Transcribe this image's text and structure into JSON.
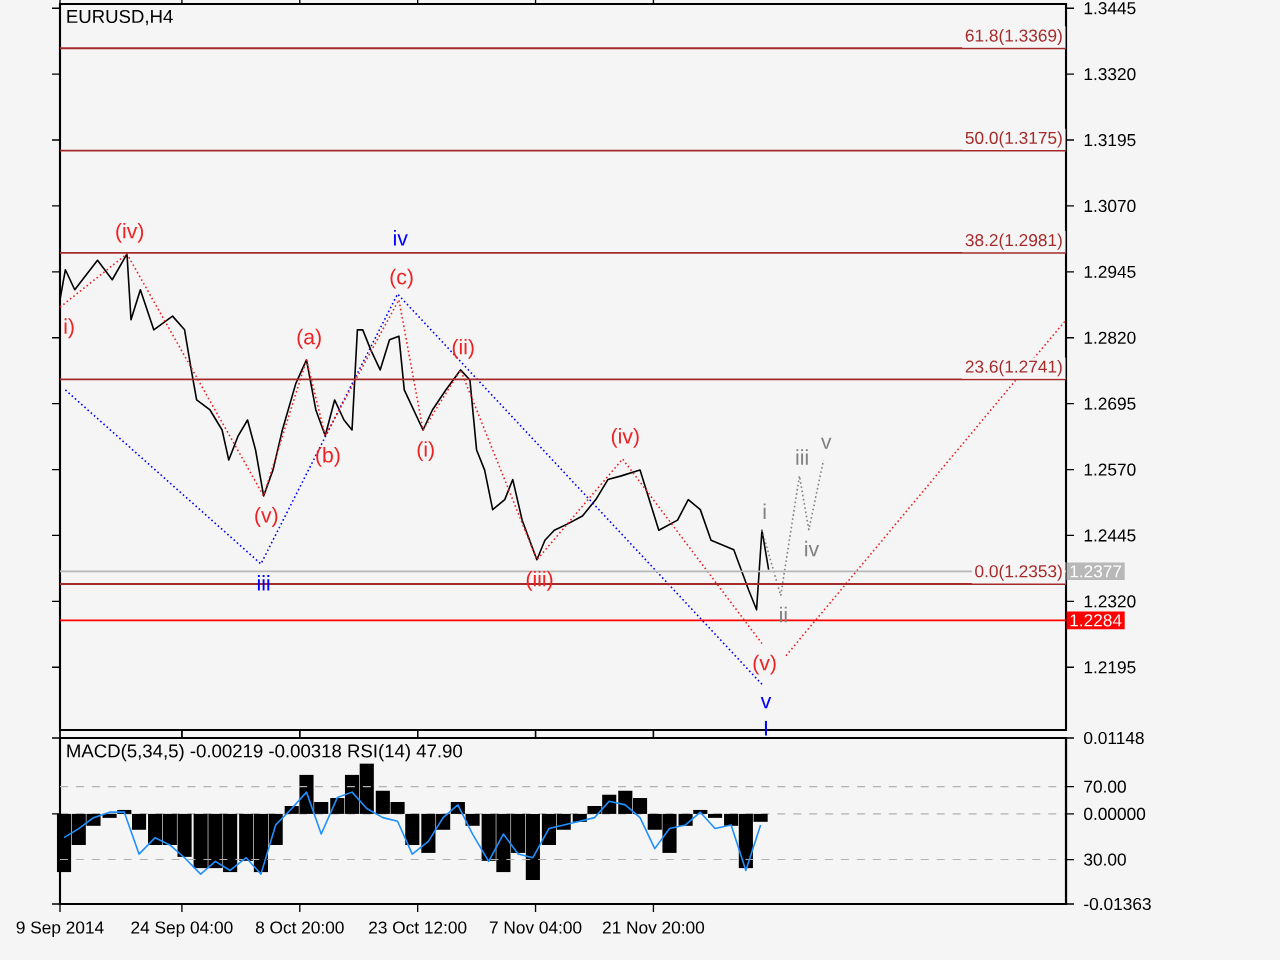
{
  "chart_data": [
    {
      "type": "line",
      "title": "EURUSD,H4",
      "tick_labels": "y",
      "xlim": [
        "2014-09-09T00:00",
        "2015-01-12T04:00"
      ],
      "ylim": [
        1.2076,
        1.3453
      ],
      "xticks": [
        {
          "value": "2014-09-09T00:00",
          "label": null
        },
        {
          "value": "2014-09-24T04:00",
          "label": null
        },
        {
          "value": "2014-10-08T20:00",
          "label": null
        },
        {
          "value": "2014-10-23T12:00",
          "label": null
        },
        {
          "value": "2014-11-07T04:00",
          "label": null
        },
        {
          "value": "2014-11-21T20:00",
          "label": null
        }
      ],
      "yticks": [
        {
          "value": 1.2195,
          "label": "1.2195"
        },
        {
          "value": 1.232,
          "label": "1.2320"
        },
        {
          "value": 1.2445,
          "label": "1.2445"
        },
        {
          "value": 1.257,
          "label": "1.2570"
        },
        {
          "value": 1.2695,
          "label": "1.2695"
        },
        {
          "value": 1.282,
          "label": "1.2820"
        },
        {
          "value": 1.2945,
          "label": "1.2945"
        },
        {
          "value": 1.307,
          "label": "1.3070"
        },
        {
          "value": 1.3195,
          "label": "1.3195"
        },
        {
          "value": 1.332,
          "label": "1.3320"
        },
        {
          "value": 1.3445,
          "label": "1.3445"
        }
      ],
      "series": [
        {
          "color": "#000000",
          "x": [
            "2014-09-09T00:00",
            "2014-09-09T16:00",
            "2014-09-10T20:00",
            "2014-09-13T16:00",
            "2014-09-15T12:00",
            "2014-09-17T08:00",
            "2014-09-17T20:00",
            "2014-09-19T00:00",
            "2014-09-20T16:00",
            "2014-09-23T00:00",
            "2014-09-24T12:00",
            "2014-09-25T08:00",
            "2014-09-26T00:00",
            "2014-09-27T16:00",
            "2014-09-29T04:00",
            "2014-09-30T00:00",
            "2014-10-01T04:00",
            "2014-10-02T08:00",
            "2014-10-03T08:00",
            "2014-10-04T08:00",
            "2014-10-05T12:00",
            "2014-10-06T16:00",
            "2014-10-08T08:00",
            "2014-10-09T16:00",
            "2014-10-10T20:00",
            "2014-10-12T00:00",
            "2014-10-13T04:00",
            "2014-10-14T08:00",
            "2014-10-15T08:00",
            "2014-10-16T00:00",
            "2014-10-16T16:00",
            "2014-10-17T16:00",
            "2014-10-18T20:00",
            "2014-10-20T00:00",
            "2014-10-21T04:00",
            "2014-10-21T20:00",
            "2014-10-23T00:00",
            "2014-10-24T04:00",
            "2014-10-25T08:00",
            "2014-10-27T00:00",
            "2014-10-28T20:00",
            "2014-10-30T00:00",
            "2014-10-30T20:00",
            "2014-10-31T20:00",
            "2014-11-01T20:00",
            "2014-11-03T08:00",
            "2014-11-04T08:00",
            "2014-11-05T12:00",
            "2014-11-07T08:00",
            "2014-11-08T08:00",
            "2014-11-09T12:00",
            "2014-11-11T04:00",
            "2014-11-13T00:00",
            "2014-11-14T16:00",
            "2014-11-16T04:00",
            "2014-11-17T20:00",
            "2014-11-20T04:00",
            "2014-11-22T12:00",
            "2014-11-24T20:00",
            "2014-11-26T04:00",
            "2014-11-27T16:00",
            "2014-11-29T00:00",
            "2014-12-01T20:00",
            "2014-12-03T16:00",
            "2014-12-04T16:00",
            "2014-12-05T08:00",
            "2014-12-06T04:00"
          ],
          "values": [
            1.2892,
            1.2949,
            1.2911,
            1.2967,
            1.293,
            1.2979,
            1.2854,
            1.2911,
            1.2835,
            1.2861,
            1.2835,
            1.2759,
            1.2702,
            1.2683,
            1.2645,
            1.2588,
            1.2634,
            1.2664,
            1.2607,
            1.252,
            1.2569,
            1.2645,
            1.2733,
            1.2778,
            1.2683,
            1.2634,
            1.2702,
            1.2664,
            1.2645,
            1.2835,
            1.2835,
            1.2797,
            1.2759,
            1.2816,
            1.2823,
            1.2721,
            1.2683,
            1.2645,
            1.2683,
            1.2721,
            1.2759,
            1.274,
            1.2607,
            1.2569,
            1.2494,
            1.2513,
            1.2551,
            1.2474,
            1.2399,
            1.2436,
            1.2455,
            1.2467,
            1.2482,
            1.2513,
            1.2551,
            1.2558,
            1.2569,
            1.2455,
            1.2474,
            1.2513,
            1.2494,
            1.2436,
            1.2418,
            1.2342,
            1.2304,
            1.2455,
            1.238
          ]
        },
        {
          "color": "#0000ff",
          "line_style": "dotted",
          "x": [
            "2014-09-09T16:00",
            "2014-10-04T00:00",
            "2014-10-21T00:00",
            "2014-12-05T12:00"
          ],
          "values": [
            1.2721,
            1.2391,
            1.2903,
            1.216
          ]
        },
        {
          "color": "#ee2222",
          "line_style": "dotted",
          "x": [
            "2014-09-09T00:00",
            "2014-09-17T08:00",
            "2014-10-04T08:00",
            "2014-10-09T16:00",
            "2014-10-12T00:00",
            "2014-10-21T04:00",
            "2014-10-24T04:00",
            "2014-10-28T20:00",
            "2014-11-07T08:00",
            "2014-11-18T00:00",
            "2014-12-05T08:00"
          ],
          "values": [
            1.2878,
            1.2979,
            1.252,
            1.2778,
            1.2634,
            1.2892,
            1.2645,
            1.2759,
            1.2399,
            1.259,
            1.224
          ]
        },
        {
          "color": "#ee2222",
          "line_style": "dotted",
          "x": [
            "2014-12-08T08:00",
            "2015-01-12T04:00"
          ],
          "values": [
            1.2217,
            1.2854
          ]
        },
        {
          "color": "#808080",
          "line_style": "dotted",
          "x": [
            "2014-12-05T08:00",
            "2014-12-07T16:00",
            "2014-12-10T00:00",
            "2014-12-11T04:00",
            "2014-12-13T00:00"
          ],
          "values": [
            1.2455,
            1.2331,
            1.2558,
            1.2456,
            1.2588
          ]
        }
      ],
      "ref_lines": [
        {
          "axis": "y",
          "value": 1.3369,
          "label": "61.8(1.3369)",
          "color": "#a52a2a"
        },
        {
          "axis": "y",
          "value": 1.3175,
          "label": "50.0(1.3175)",
          "color": "#a52a2a"
        },
        {
          "axis": "y",
          "value": 1.2981,
          "label": "38.2(1.2981)",
          "color": "#a52a2a"
        },
        {
          "axis": "y",
          "value": 1.2741,
          "label": "23.6(1.2741)",
          "color": "#a52a2a"
        },
        {
          "axis": "y",
          "value": 1.2353,
          "label": "0.0(1.2353)",
          "color": "#a52a2a"
        },
        {
          "axis": "y",
          "value": 1.2377,
          "label": "1.2377",
          "color": "#b8b8b8"
        },
        {
          "axis": "y",
          "value": 1.2284,
          "label": "1.2284",
          "color": "#ff0000"
        }
      ],
      "annotations": [
        {
          "text": "i)",
          "x": "2014-09-09T00:00",
          "y": 1.2878
        },
        {
          "text": "(iv)",
          "x": "2014-09-17T08:00",
          "y": 1.2979
        },
        {
          "text": "(v)",
          "x": "2014-10-04T08:00",
          "y": 1.252
        },
        {
          "text": "(a)",
          "x": "2014-10-09T16:00",
          "y": 1.2778
        },
        {
          "text": "(b)",
          "x": "2014-10-12T00:00",
          "y": 1.2634
        },
        {
          "text": "(c)",
          "x": "2014-10-21T04:00",
          "y": 1.2892
        },
        {
          "text": "(i)",
          "x": "2014-10-24T04:00",
          "y": 1.2645
        },
        {
          "text": "(ii)",
          "x": "2014-10-28T20:00",
          "y": 1.2759
        },
        {
          "text": "(iii)",
          "x": "2014-11-07T08:00",
          "y": 1.2399
        },
        {
          "text": "(iv)",
          "x": "2014-11-18T00:00",
          "y": 1.259
        },
        {
          "text": "(v)",
          "x": "2014-12-05T08:00",
          "y": 1.224
        },
        {
          "text": "iii",
          "x": "2014-10-04T00:00",
          "y": 1.2391
        },
        {
          "text": "iv",
          "x": "2014-10-21T00:00",
          "y": 1.2903
        },
        {
          "text": "v",
          "x": "2014-12-05T12:00",
          "y": 1.216
        },
        {
          "text": "I",
          "x": "2014-12-05T12:00",
          "y": 1.216
        },
        {
          "text": "i",
          "x": "2014-12-05T08:00",
          "y": 1.2455
        },
        {
          "text": "ii",
          "x": "2014-12-07T16:00",
          "y": 1.2331
        },
        {
          "text": "iii",
          "x": "2014-12-10T00:00",
          "y": 1.2558
        },
        {
          "text": "iv",
          "x": "2014-12-11T04:00",
          "y": 1.2456
        },
        {
          "text": "v",
          "x": "2014-12-13T00:00",
          "y": 1.2588
        }
      ]
    },
    {
      "type": "bar",
      "title": "MACD(5,34,5) -0.00219 -0.00318 RSI(14) 47.90",
      "grid": true,
      "xlim": [
        "2014-09-09T00:00",
        "2015-01-12T04:00"
      ],
      "xticks": [
        {
          "value": "2014-09-09T00:00",
          "label": "9 Sep 2014"
        },
        {
          "value": "2014-09-24T04:00",
          "label": "24 Sep 04:00"
        },
        {
          "value": "2014-10-08T20:00",
          "label": "8 Oct 20:00"
        },
        {
          "value": "2014-10-23T12:00",
          "label": "23 Oct 12:00"
        },
        {
          "value": "2014-11-07T04:00",
          "label": "7 Nov 04:00"
        },
        {
          "value": "2014-11-21T20:00",
          "label": "21 Nov 20:00"
        }
      ],
      "ylim": [
        -0.01363,
        0.01148
      ],
      "yticks": [
        {
          "value": -0.01363,
          "label": "-0.01363"
        },
        {
          "value": 0,
          "label": "0.00000"
        },
        {
          "value": 0.01148,
          "label": "0.01148"
        }
      ],
      "y2lim": [
        5.6,
        96.7
      ],
      "y2ticks": [
        {
          "value": 30,
          "label": "30.00"
        },
        {
          "value": 70,
          "label": "70.00"
        }
      ],
      "x": [
        "2014-09-09T12:00",
        "2014-09-11T08:00",
        "2014-09-13T04:00",
        "2014-09-15T04:00",
        "2014-09-17T00:00",
        "2014-09-18T20:00",
        "2014-09-20T20:00",
        "2014-09-22T16:00",
        "2014-09-24T12:00",
        "2014-09-26T12:00",
        "2014-09-28T08:00",
        "2014-09-30T04:00",
        "2014-10-02T04:00",
        "2014-10-04T00:00",
        "2014-10-05T20:00",
        "2014-10-07T20:00",
        "2014-10-09T16:00",
        "2014-10-11T12:00",
        "2014-10-13T12:00",
        "2014-10-15T08:00",
        "2014-10-17T04:00",
        "2014-10-19T04:00",
        "2014-10-21T00:00",
        "2014-10-22T20:00",
        "2014-10-24T20:00",
        "2014-10-26T16:00",
        "2014-10-28T12:00",
        "2014-10-30T08:00",
        "2014-11-01T08:00",
        "2014-11-03T04:00",
        "2014-11-05T00:00",
        "2014-11-06T20:00",
        "2014-11-08T20:00",
        "2014-11-10T16:00",
        "2014-11-12T16:00",
        "2014-11-14T12:00",
        "2014-11-16T08:00",
        "2014-11-18T08:00",
        "2014-11-20T04:00",
        "2014-11-22T00:00",
        "2014-11-23T20:00",
        "2014-11-25T20:00",
        "2014-11-27T16:00",
        "2014-11-29T12:00",
        "2014-12-01T12:00",
        "2014-12-03T08:00",
        "2014-12-05T04:00"
      ],
      "series": [
        {
          "color": "#000000",
          "values": [
            -0.0088,
            -0.0047,
            -0.0018,
            -0.0006,
            0.0006,
            -0.0024,
            -0.0047,
            -0.0047,
            -0.0065,
            -0.0082,
            -0.0082,
            -0.0088,
            -0.0071,
            -0.0088,
            -0.0047,
            0.0012,
            0.0059,
            0.0018,
            0.0024,
            0.0059,
            0.0076,
            0.0035,
            0.0018,
            -0.0047,
            -0.0059,
            -0.0024,
            0.0018,
            -0.0018,
            -0.0071,
            -0.0088,
            -0.0059,
            -0.01,
            -0.0047,
            -0.0024,
            -0.0012,
            0.0012,
            0.0029,
            0.0035,
            0.0024,
            -0.0024,
            -0.0059,
            -0.0018,
            0.0006,
            -0.0006,
            -0.0018,
            -0.0082,
            -0.0012
          ]
        },
        {
          "type": "line",
          "axis": "y2",
          "color": "#1e90ff",
          "values": [
            42,
            47,
            53,
            56,
            56,
            33,
            42,
            38,
            31,
            22,
            29,
            24,
            31,
            22,
            49,
            58,
            67,
            44,
            64,
            67,
            58,
            53,
            51,
            33,
            40,
            53,
            60,
            44,
            29,
            44,
            33,
            31,
            47,
            49,
            51,
            53,
            62,
            60,
            53,
            36,
            47,
            49,
            56,
            47,
            49,
            24,
            49
          ]
        }
      ]
    }
  ]
}
